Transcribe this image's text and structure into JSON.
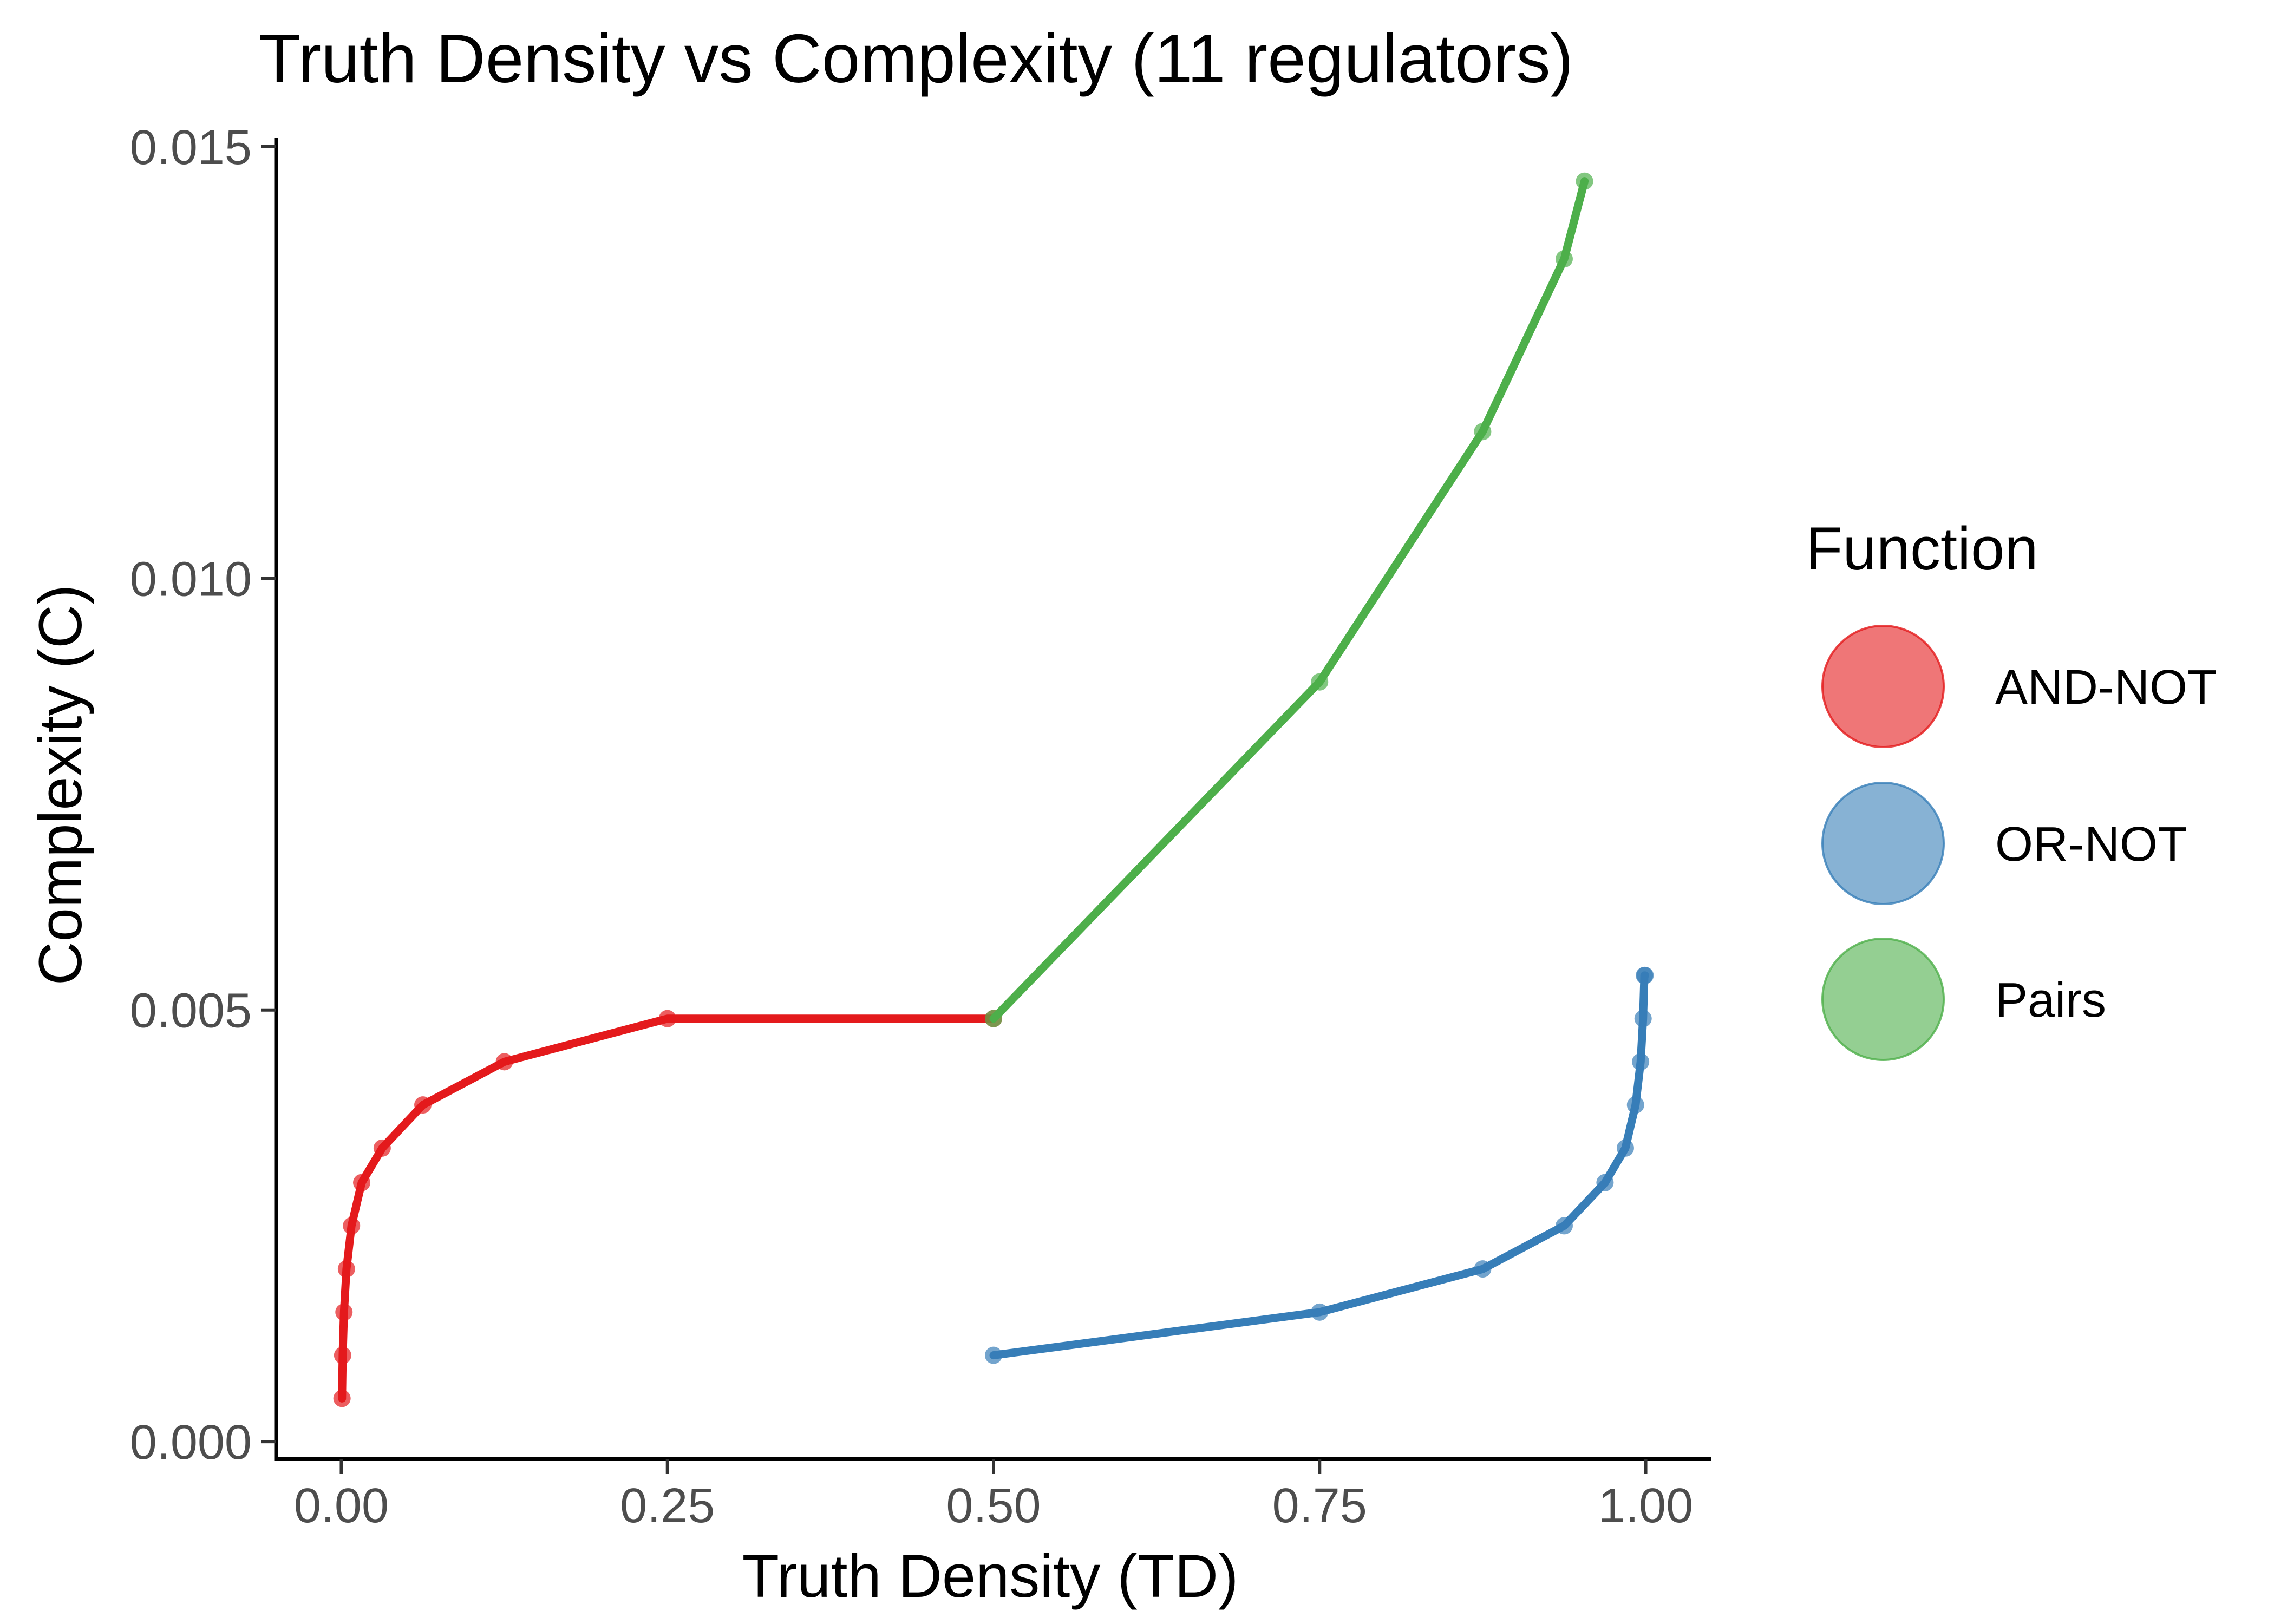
{
  "chart_data": {
    "type": "line",
    "title": "Truth Density vs Complexity (11 regulators)",
    "xlabel": "Truth Density (TD)",
    "ylabel": "Complexity (C)",
    "xlim": [
      -0.05,
      1.05
    ],
    "ylim": [
      -0.0002,
      0.0151
    ],
    "x_ticks": [
      0,
      0.25,
      0.5,
      0.75,
      1
    ],
    "x_tick_labels": [
      "0.00",
      "0.25",
      "0.50",
      "0.75",
      "1.00"
    ],
    "y_ticks": [
      0,
      0.005,
      0.01,
      0.015
    ],
    "y_tick_labels": [
      "0.000",
      "0.005",
      "0.010",
      "0.015"
    ],
    "grid": false,
    "legend": {
      "title": "Function",
      "placement": "right"
    },
    "series": [
      {
        "name": "AND-NOT",
        "color": "#e41a1c",
        "x": [
          0.0005,
          0.001,
          0.002,
          0.0039,
          0.0078,
          0.0156,
          0.0313,
          0.0625,
          0.125,
          0.25,
          0.5
        ],
        "y": [
          0.0005,
          0.001,
          0.0015,
          0.002,
          0.0025,
          0.003,
          0.0034,
          0.0039,
          0.0044,
          0.0049,
          0.0049
        ]
      },
      {
        "name": "OR-NOT",
        "color": "#377eb8",
        "x": [
          0.5,
          0.75,
          0.875,
          0.9375,
          0.9688,
          0.9844,
          0.9922,
          0.9961,
          0.998,
          0.999,
          0.9995
        ],
        "y": [
          0.001,
          0.0015,
          0.002,
          0.0025,
          0.003,
          0.0034,
          0.0039,
          0.0044,
          0.0049,
          0.0054,
          0.0054
        ]
      },
      {
        "name": "Pairs",
        "color": "#4daf4a",
        "x": [
          0.5,
          0.75,
          0.875,
          0.9375,
          0.9531
        ],
        "y": [
          0.0049,
          0.0088,
          0.0117,
          0.0137,
          0.0146
        ]
      }
    ]
  }
}
